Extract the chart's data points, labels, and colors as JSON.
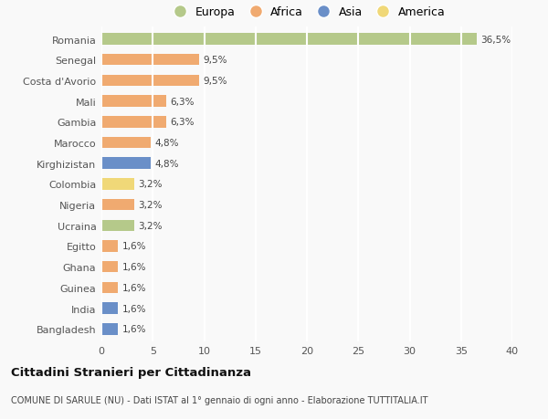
{
  "countries": [
    "Romania",
    "Senegal",
    "Costa d'Avorio",
    "Mali",
    "Gambia",
    "Marocco",
    "Kirghizistan",
    "Colombia",
    "Nigeria",
    "Ucraina",
    "Egitto",
    "Ghana",
    "Guinea",
    "India",
    "Bangladesh"
  ],
  "values": [
    36.5,
    9.5,
    9.5,
    6.3,
    6.3,
    4.8,
    4.8,
    3.2,
    3.2,
    3.2,
    1.6,
    1.6,
    1.6,
    1.6,
    1.6
  ],
  "labels": [
    "36,5%",
    "9,5%",
    "9,5%",
    "6,3%",
    "6,3%",
    "4,8%",
    "4,8%",
    "3,2%",
    "3,2%",
    "3,2%",
    "1,6%",
    "1,6%",
    "1,6%",
    "1,6%",
    "1,6%"
  ],
  "continents": [
    "Europa",
    "Africa",
    "Africa",
    "Africa",
    "Africa",
    "Africa",
    "Asia",
    "America",
    "Africa",
    "Europa",
    "Africa",
    "Africa",
    "Africa",
    "Asia",
    "Asia"
  ],
  "colors": {
    "Europa": "#b5c98a",
    "Africa": "#f0aa70",
    "Asia": "#6a8fc8",
    "America": "#f0d878"
  },
  "xlim": [
    0,
    40
  ],
  "xticks": [
    0,
    5,
    10,
    15,
    20,
    25,
    30,
    35,
    40
  ],
  "title": "Cittadini Stranieri per Cittadinanza",
  "subtitle": "COMUNE DI SARULE (NU) - Dati ISTAT al 1° gennaio di ogni anno - Elaborazione TUTTITALIA.IT",
  "background_color": "#f9f9f9",
  "grid_color": "#ffffff",
  "bar_height": 0.55
}
